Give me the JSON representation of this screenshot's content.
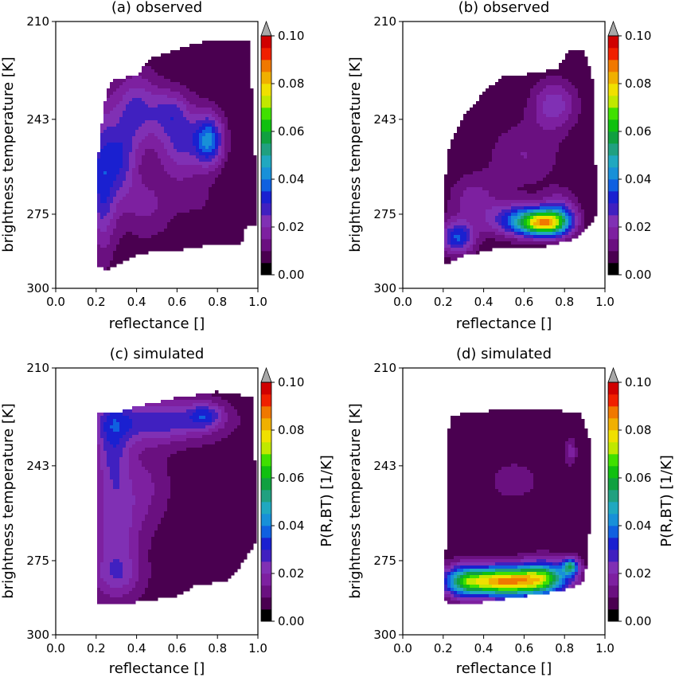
{
  "colorscale": {
    "levels": [
      0.0,
      0.005,
      0.01,
      0.015,
      0.02,
      0.025,
      0.03,
      0.035,
      0.04,
      0.045,
      0.05,
      0.055,
      0.06,
      0.065,
      0.07,
      0.075,
      0.08,
      0.085,
      0.09,
      0.095,
      0.1
    ],
    "colors": [
      "#000000",
      "#4a0050",
      "#6a1080",
      "#7d20a0",
      "#8030b4",
      "#4020c0",
      "#1a20d0",
      "#1060e0",
      "#1890d8",
      "#20a8c0",
      "#20a080",
      "#10a040",
      "#10c010",
      "#40e000",
      "#c0e800",
      "#f0e000",
      "#f0b000",
      "#f07800",
      "#f02000",
      "#d00000"
    ],
    "over_color": "#a8a8a8"
  },
  "chart_data": [
    {
      "type": "heatmap",
      "title": "(a) observed",
      "xlabel": "reflectance []",
      "ylabel": "brightness temperature [K]",
      "xlim": [
        0.0,
        1.0
      ],
      "ylim": [
        210,
        300
      ],
      "xticks": [
        "0.0",
        "0.2",
        "0.4",
        "0.6",
        "0.8",
        "1.0"
      ],
      "yticks": [
        "210",
        "243",
        "275",
        "300"
      ],
      "colorbar": {
        "label": "",
        "ticks": [
          "0.00",
          "0.02",
          "0.04",
          "0.06",
          "0.08",
          "0.10"
        ]
      },
      "support": [
        [
          0.2,
          292
        ],
        [
          0.21,
          255
        ],
        [
          0.24,
          238
        ],
        [
          0.27,
          230
        ],
        [
          0.4,
          228
        ],
        [
          0.48,
          222
        ],
        [
          0.72,
          217
        ],
        [
          0.76,
          216
        ],
        [
          0.96,
          216
        ],
        [
          0.97,
          235
        ],
        [
          1.0,
          278
        ],
        [
          0.94,
          279
        ],
        [
          0.92,
          285
        ],
        [
          0.78,
          285
        ],
        [
          0.62,
          287
        ],
        [
          0.5,
          287
        ],
        [
          0.4,
          289
        ],
        [
          0.25,
          294
        ]
      ],
      "peaks": [
        {
          "x": 0.23,
          "y": 263,
          "sx": 0.05,
          "sy": 16.0,
          "a": 0.026
        },
        {
          "x": 0.33,
          "y": 257,
          "sx": 0.05,
          "sy": 9.0,
          "a": 0.018
        },
        {
          "x": 0.4,
          "y": 240,
          "sx": 0.08,
          "sy": 9.0,
          "a": 0.02
        },
        {
          "x": 0.56,
          "y": 240,
          "sx": 0.06,
          "sy": 5.0,
          "a": 0.012
        },
        {
          "x": 0.76,
          "y": 250,
          "sx": 0.05,
          "sy": 6.0,
          "a": 0.032
        },
        {
          "x": 0.62,
          "y": 250,
          "sx": 0.08,
          "sy": 9.0,
          "a": 0.02
        },
        {
          "x": 0.45,
          "y": 272,
          "sx": 0.09,
          "sy": 8.0,
          "a": 0.01
        },
        {
          "x": 0.9,
          "y": 220,
          "sx": 0.04,
          "sy": 4.0,
          "a": 0.004
        },
        {
          "x": 0.7,
          "y": 270,
          "sx": 0.08,
          "sy": 6.0,
          "a": 0.004
        }
      ],
      "base": 0.006
    },
    {
      "type": "heatmap",
      "title": "(b) observed",
      "xlabel": "reflectance []",
      "ylabel": "brightness temperature [K]",
      "xlim": [
        0.0,
        1.0
      ],
      "ylim": [
        210,
        300
      ],
      "xticks": [
        "0.0",
        "0.2",
        "0.4",
        "0.6",
        "0.8",
        "1.0"
      ],
      "yticks": [
        "210",
        "243",
        "275",
        "300"
      ],
      "colorbar": {
        "label": "",
        "ticks": [
          "0.00",
          "0.02",
          "0.04",
          "0.06",
          "0.08",
          "0.10"
        ]
      },
      "support": [
        [
          0.2,
          290
        ],
        [
          0.2,
          268
        ],
        [
          0.23,
          252
        ],
        [
          0.3,
          242
        ],
        [
          0.4,
          234
        ],
        [
          0.5,
          228
        ],
        [
          0.6,
          228
        ],
        [
          0.68,
          227
        ],
        [
          0.76,
          226
        ],
        [
          0.82,
          220
        ],
        [
          0.9,
          220
        ],
        [
          0.94,
          230
        ],
        [
          0.96,
          275
        ],
        [
          0.91,
          280
        ],
        [
          0.86,
          283
        ],
        [
          0.7,
          286
        ],
        [
          0.5,
          286
        ],
        [
          0.3,
          289
        ],
        [
          0.22,
          292
        ]
      ],
      "peaks": [
        {
          "x": 0.7,
          "y": 278,
          "sx": 0.08,
          "sy": 3.0,
          "a": 0.06
        },
        {
          "x": 0.58,
          "y": 277,
          "sx": 0.11,
          "sy": 4.0,
          "a": 0.03
        },
        {
          "x": 0.27,
          "y": 283,
          "sx": 0.06,
          "sy": 4.0,
          "a": 0.03
        },
        {
          "x": 0.78,
          "y": 275,
          "sx": 0.06,
          "sy": 5.0,
          "a": 0.02
        },
        {
          "x": 0.75,
          "y": 238,
          "sx": 0.08,
          "sy": 6.0,
          "a": 0.018
        },
        {
          "x": 0.6,
          "y": 255,
          "sx": 0.13,
          "sy": 8.0,
          "a": 0.01
        },
        {
          "x": 0.35,
          "y": 270,
          "sx": 0.09,
          "sy": 6.0,
          "a": 0.012
        }
      ],
      "base": 0.005
    },
    {
      "type": "heatmap",
      "title": "(c) simulated",
      "xlabel": "reflectance []",
      "ylabel": "brightness temperature [K]",
      "xlim": [
        0.0,
        1.0
      ],
      "ylim": [
        210,
        300
      ],
      "xticks": [
        "0.0",
        "0.2",
        "0.4",
        "0.6",
        "0.8",
        "1.0"
      ],
      "yticks": [
        "210",
        "243",
        "275",
        "300"
      ],
      "colorbar": {
        "label": "P(R,BT) [1/K]",
        "ticks": [
          "0.00",
          "0.02",
          "0.04",
          "0.06",
          "0.08",
          "0.10"
        ]
      },
      "support": [
        [
          0.21,
          290
        ],
        [
          0.21,
          225
        ],
        [
          0.3,
          225
        ],
        [
          0.4,
          223
        ],
        [
          0.6,
          220
        ],
        [
          0.8,
          218
        ],
        [
          0.9,
          219
        ],
        [
          0.97,
          220
        ],
        [
          0.99,
          250
        ],
        [
          1.0,
          268
        ],
        [
          0.96,
          272
        ],
        [
          0.92,
          276
        ],
        [
          0.85,
          282
        ],
        [
          0.7,
          283
        ],
        [
          0.6,
          287
        ],
        [
          0.4,
          289
        ],
        [
          0.25,
          290
        ]
      ],
      "peaks": [
        {
          "x": 0.5,
          "y": 228,
          "sx": 0.2,
          "sy": 5.0,
          "a": 0.022
        },
        {
          "x": 0.74,
          "y": 226,
          "sx": 0.06,
          "sy": 3.0,
          "a": 0.018
        },
        {
          "x": 0.28,
          "y": 235,
          "sx": 0.06,
          "sy": 12.0,
          "a": 0.018
        },
        {
          "x": 0.3,
          "y": 265,
          "sx": 0.08,
          "sy": 14.0,
          "a": 0.016
        },
        {
          "x": 0.45,
          "y": 250,
          "sx": 0.08,
          "sy": 10.0,
          "a": 0.008
        },
        {
          "x": 0.3,
          "y": 280,
          "sx": 0.09,
          "sy": 5.0,
          "a": 0.01
        }
      ],
      "base": 0.007
    },
    {
      "type": "heatmap",
      "title": "(d) simulated",
      "xlabel": "reflectance []",
      "ylabel": "brightness temperature [K]",
      "xlim": [
        0.0,
        1.0
      ],
      "ylim": [
        210,
        300
      ],
      "xticks": [
        "0.0",
        "0.2",
        "0.4",
        "0.6",
        "0.8",
        "1.0"
      ],
      "yticks": [
        "210",
        "243",
        "275",
        "300"
      ],
      "colorbar": {
        "label": "P(R,BT) [1/K]",
        "ticks": [
          "0.00",
          "0.02",
          "0.04",
          "0.06",
          "0.08",
          "0.10"
        ]
      },
      "support": [
        [
          0.2,
          288
        ],
        [
          0.21,
          278
        ],
        [
          0.23,
          226
        ],
        [
          0.35,
          225
        ],
        [
          0.5,
          224
        ],
        [
          0.7,
          224
        ],
        [
          0.88,
          225
        ],
        [
          0.93,
          235
        ],
        [
          0.93,
          252
        ],
        [
          0.92,
          268
        ],
        [
          0.9,
          282
        ],
        [
          0.8,
          285
        ],
        [
          0.6,
          287
        ],
        [
          0.4,
          289
        ],
        [
          0.25,
          290
        ]
      ],
      "peaks": [
        {
          "x": 0.5,
          "y": 282,
          "sx": 0.17,
          "sy": 3.5,
          "a": 0.08
        },
        {
          "x": 0.83,
          "y": 277,
          "sx": 0.03,
          "sy": 2.0,
          "a": 0.04
        },
        {
          "x": 0.7,
          "y": 280,
          "sx": 0.08,
          "sy": 4.0,
          "a": 0.03
        },
        {
          "x": 0.3,
          "y": 282,
          "sx": 0.06,
          "sy": 4.0,
          "a": 0.02
        },
        {
          "x": 0.83,
          "y": 238,
          "sx": 0.02,
          "sy": 3.0,
          "a": 0.012
        },
        {
          "x": 0.55,
          "y": 248,
          "sx": 0.15,
          "sy": 8.0,
          "a": 0.005
        }
      ],
      "base": 0.006
    }
  ]
}
